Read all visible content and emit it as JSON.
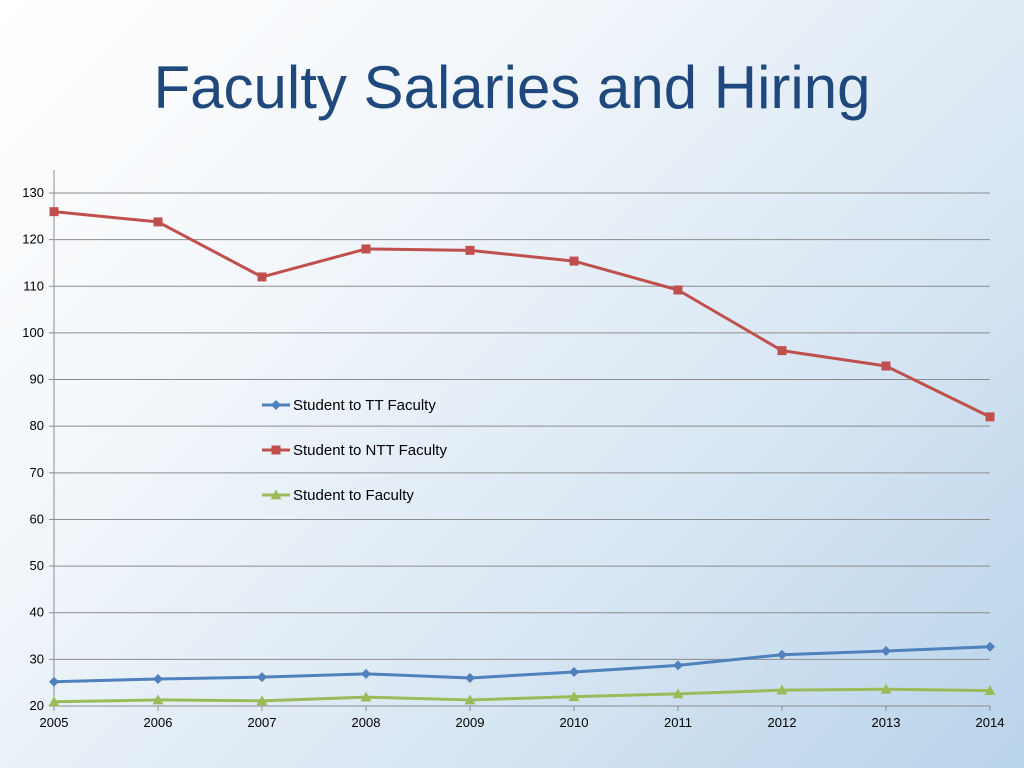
{
  "slide": {
    "title": "Faculty Salaries and Hiring"
  },
  "chart_data": {
    "type": "line",
    "title": "",
    "xlabel": "",
    "ylabel": "",
    "x": [
      "2005",
      "2006",
      "2007",
      "2008",
      "2009",
      "2010",
      "2011",
      "2012",
      "2013",
      "2014"
    ],
    "ylim": [
      20,
      130
    ],
    "yticks": [
      20,
      30,
      40,
      50,
      60,
      70,
      80,
      90,
      100,
      110,
      120,
      130
    ],
    "grid": true,
    "legend_position": "center",
    "series": [
      {
        "name": "Student to TT Faculty",
        "color": "#4f81bd",
        "marker": "diamond",
        "values": [
          25.2,
          25.8,
          26.2,
          26.9,
          26.0,
          27.3,
          28.7,
          31.0,
          31.8,
          32.7
        ]
      },
      {
        "name": "Student to NTT Faculty",
        "color": "#c0504d",
        "marker": "square",
        "values": [
          126.0,
          123.8,
          112.0,
          118.0,
          117.7,
          115.4,
          109.2,
          96.2,
          92.9,
          82.0
        ]
      },
      {
        "name": "Student to Faculty",
        "color": "#9bbb59",
        "marker": "triangle",
        "values": [
          20.9,
          21.3,
          21.1,
          21.9,
          21.3,
          22.0,
          22.6,
          23.4,
          23.6,
          23.3
        ]
      }
    ]
  }
}
